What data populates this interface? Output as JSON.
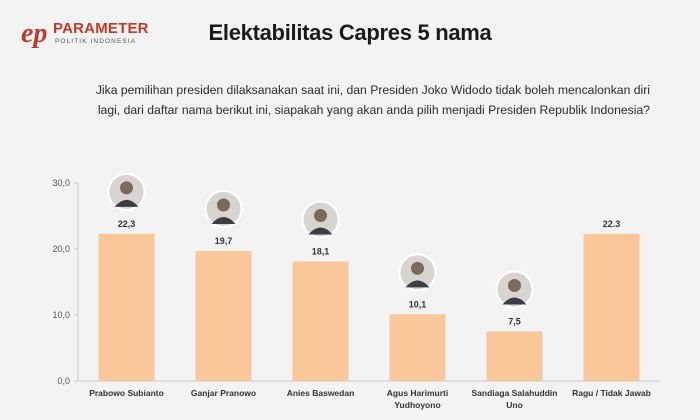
{
  "logo": {
    "name": "PARAMETER",
    "sub": "POLITIK INDONESIA",
    "mark": "ep"
  },
  "header": {
    "title": "Elektabilitas Capres 5 nama",
    "question_line1": "Jika pemilihan presiden dilaksanakan saat ini, dan Presiden Joko Widodo tidak boleh mencalonkan diri",
    "question_line2": "lagi, dari daftar nama berikut ini, siapakah yang akan anda pilih menjadi Presiden Republik Indonesia?"
  },
  "colors": {
    "bar": "#f9c79a",
    "background": "#f3f3f3",
    "axis": "#c8c8c8",
    "brand": "#c0392b"
  },
  "chart_data": {
    "type": "bar",
    "title": "",
    "xlabel": "",
    "ylabel": "",
    "ylim": [
      0,
      30
    ],
    "yticks": [
      0,
      10,
      20,
      30
    ],
    "ytick_labels": [
      "0,0",
      "10,0",
      "20,0",
      "30,0"
    ],
    "grid": false,
    "categories": [
      [
        "Prabowo Subianto"
      ],
      [
        "Ganjar Pranowo"
      ],
      [
        "Anies Baswedan"
      ],
      [
        "Agus Harimurti",
        "Yudhoyono"
      ],
      [
        "Sandiaga Salahuddin",
        "Uno"
      ],
      [
        "Ragu / Tidak Jawab"
      ]
    ],
    "values": [
      22.3,
      19.7,
      18.1,
      10.1,
      7.5,
      22.3
    ],
    "value_labels": [
      "22,3",
      "19,7",
      "18,1",
      "10,1",
      "7,5",
      "22.3"
    ],
    "photos": [
      "candidate-photo",
      "candidate-photo",
      "candidate-photo",
      "candidate-photo",
      "candidate-photo",
      ""
    ]
  }
}
